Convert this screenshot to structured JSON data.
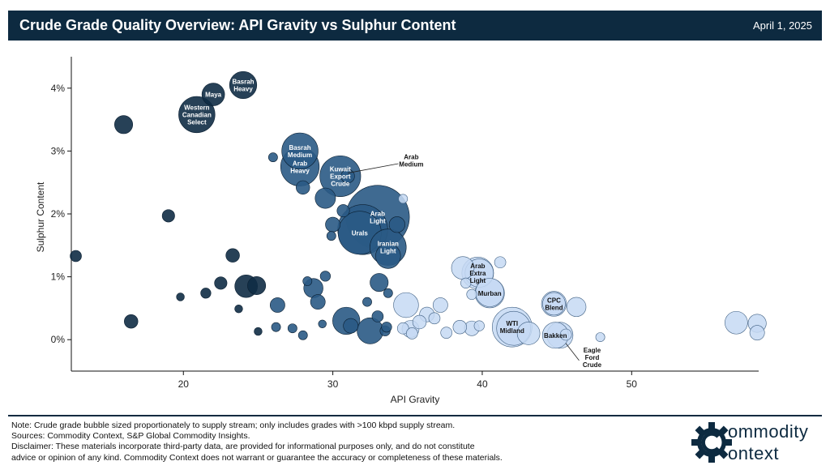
{
  "header": {
    "title": "Crude Grade Quality Overview: API Gravity vs Sulphur Content",
    "date": "April 1, 2025"
  },
  "footer": {
    "note": "Note: Crude grade bubble sized proportionately to supply stream; only includes grades with >100 kbpd supply stream.",
    "sources": "Sources: Commodity Context, S&P Global Commodity Insights.",
    "disclaimer_1": "Disclaimer: These materials incorporate third-party data, are provided for informational purposes only, and do not constitute",
    "disclaimer_2": "advice or opinion of any kind. Commodity Context does not warrant or guarantee the accuracy or completeness of these materials."
  },
  "logo": {
    "line1": "ommodity",
    "line2": "ontext"
  },
  "colors": {
    "heavy_sour": "#0f2c45",
    "medium_sour": "#2a5a85",
    "light_sweet": "#c5d9f3",
    "header": "#0d2a40"
  },
  "chart_data": {
    "type": "scatter",
    "title": "Crude Grade Quality Overview: API Gravity vs Sulphur Content",
    "xlabel": "API Gravity",
    "ylabel": "Sulphur Content",
    "xlim": [
      12.5,
      58.5
    ],
    "ylim": [
      -0.5,
      4.5
    ],
    "xticks": [
      20,
      30,
      40,
      50
    ],
    "yticks": [
      0,
      1,
      2,
      3,
      4
    ],
    "ytick_labels": [
      "0%",
      "1%",
      "2%",
      "3%",
      "4%"
    ],
    "grid": false,
    "points": [
      {
        "x": 12.8,
        "y": 1.33,
        "s": 1.0,
        "g": "h"
      },
      {
        "x": 16.0,
        "y": 3.42,
        "s": 1.6,
        "g": "h"
      },
      {
        "x": 16.5,
        "y": 0.29,
        "s": 1.2,
        "g": "h"
      },
      {
        "x": 19.0,
        "y": 1.97,
        "s": 1.1,
        "g": "h"
      },
      {
        "x": 19.8,
        "y": 0.68,
        "s": 0.7,
        "g": "h"
      },
      {
        "x": 21.5,
        "y": 0.74,
        "s": 0.9,
        "g": "h"
      },
      {
        "x": 22.5,
        "y": 0.9,
        "s": 1.1,
        "g": "h"
      },
      {
        "x": 23.3,
        "y": 1.34,
        "s": 1.2,
        "g": "h"
      },
      {
        "x": 23.7,
        "y": 0.49,
        "s": 0.7,
        "g": "h"
      },
      {
        "x": 24.2,
        "y": 0.85,
        "s": 2.0,
        "g": "h"
      },
      {
        "x": 24.9,
        "y": 0.86,
        "s": 1.6,
        "g": "h"
      },
      {
        "x": 25.0,
        "y": 0.13,
        "s": 0.7,
        "g": "h"
      },
      {
        "x": 26.3,
        "y": 0.55,
        "s": 1.3,
        "g": "m"
      },
      {
        "x": 26.2,
        "y": 0.2,
        "s": 0.8,
        "g": "m"
      },
      {
        "x": 26.0,
        "y": 2.9,
        "s": 0.8,
        "g": "m"
      },
      {
        "x": 27.3,
        "y": 0.18,
        "s": 0.8,
        "g": "m"
      },
      {
        "x": 28.0,
        "y": 2.42,
        "s": 1.2,
        "g": "m"
      },
      {
        "x": 28.0,
        "y": 0.07,
        "s": 0.8,
        "g": "m"
      },
      {
        "x": 28.3,
        "y": 0.93,
        "s": 0.8,
        "g": "m"
      },
      {
        "x": 28.7,
        "y": 0.82,
        "s": 1.7,
        "g": "m"
      },
      {
        "x": 29.0,
        "y": 0.6,
        "s": 1.3,
        "g": "m"
      },
      {
        "x": 29.3,
        "y": 0.25,
        "s": 0.7,
        "g": "m"
      },
      {
        "x": 29.5,
        "y": 1.01,
        "s": 0.9,
        "g": "m"
      },
      {
        "x": 29.5,
        "y": 2.25,
        "s": 1.8,
        "g": "m"
      },
      {
        "x": 30.0,
        "y": 1.83,
        "s": 1.3,
        "g": "m"
      },
      {
        "x": 29.9,
        "y": 1.65,
        "s": 0.8,
        "g": "m"
      },
      {
        "x": 30.7,
        "y": 2.05,
        "s": 1.1,
        "g": "m"
      },
      {
        "x": 31.0,
        "y": 2.6,
        "s": 1.2,
        "g": "m"
      },
      {
        "x": 30.9,
        "y": 0.3,
        "s": 2.4,
        "g": "m"
      },
      {
        "x": 31.2,
        "y": 0.22,
        "s": 1.3,
        "g": "m"
      },
      {
        "x": 32.0,
        "y": 1.75,
        "s": 4.4,
        "g": "m"
      },
      {
        "x": 32.3,
        "y": 0.6,
        "s": 0.8,
        "g": "m"
      },
      {
        "x": 32.5,
        "y": 0.14,
        "s": 2.3,
        "g": "m"
      },
      {
        "x": 33.0,
        "y": 0.37,
        "s": 1.0,
        "g": "m"
      },
      {
        "x": 33.1,
        "y": 0.91,
        "s": 1.6,
        "g": "m"
      },
      {
        "x": 33.5,
        "y": 0.14,
        "s": 0.9,
        "g": "m"
      },
      {
        "x": 33.6,
        "y": 0.2,
        "s": 0.9,
        "g": "m"
      },
      {
        "x": 33.7,
        "y": 0.74,
        "s": 0.8,
        "g": "m"
      },
      {
        "x": 33.7,
        "y": 1.33,
        "s": 2.2,
        "g": "m"
      },
      {
        "x": 34.3,
        "y": 1.83,
        "s": 1.4,
        "g": "m"
      },
      {
        "x": 34.7,
        "y": 2.24,
        "s": 0.8,
        "g": "l"
      },
      {
        "x": 34.9,
        "y": 0.55,
        "s": 2.2,
        "g": "l"
      },
      {
        "x": 34.7,
        "y": 0.18,
        "s": 1.0,
        "g": "l"
      },
      {
        "x": 35.2,
        "y": 0.17,
        "s": 1.5,
        "g": "l"
      },
      {
        "x": 35.3,
        "y": 0.1,
        "s": 1.0,
        "g": "l"
      },
      {
        "x": 35.8,
        "y": 0.28,
        "s": 1.2,
        "g": "l"
      },
      {
        "x": 36.3,
        "y": 0.4,
        "s": 1.3,
        "g": "l"
      },
      {
        "x": 36.8,
        "y": 0.34,
        "s": 1.0,
        "g": "l"
      },
      {
        "x": 37.2,
        "y": 0.55,
        "s": 1.3,
        "g": "l"
      },
      {
        "x": 37.6,
        "y": 0.11,
        "s": 1.0,
        "g": "l"
      },
      {
        "x": 38.5,
        "y": 0.2,
        "s": 1.2,
        "g": "l"
      },
      {
        "x": 38.7,
        "y": 1.14,
        "s": 2.0,
        "g": "l"
      },
      {
        "x": 38.9,
        "y": 0.9,
        "s": 0.9,
        "g": "l"
      },
      {
        "x": 39.3,
        "y": 0.72,
        "s": 0.9,
        "g": "l"
      },
      {
        "x": 39.3,
        "y": 0.18,
        "s": 1.3,
        "g": "l"
      },
      {
        "x": 39.8,
        "y": 0.22,
        "s": 0.9,
        "g": "l"
      },
      {
        "x": 39.8,
        "y": 1.06,
        "s": 2.5,
        "g": "l"
      },
      {
        "x": 40.5,
        "y": 0.75,
        "s": 2.5,
        "g": "l"
      },
      {
        "x": 41.2,
        "y": 1.23,
        "s": 1.0,
        "g": "l"
      },
      {
        "x": 42.1,
        "y": 0.18,
        "s": 3.0,
        "g": "l"
      },
      {
        "x": 43.1,
        "y": 0.1,
        "s": 2.0,
        "g": "l"
      },
      {
        "x": 44.8,
        "y": 0.57,
        "s": 2.0,
        "g": "l"
      },
      {
        "x": 45.2,
        "y": 0.07,
        "s": 2.3,
        "g": "l"
      },
      {
        "x": 45.6,
        "y": 0.08,
        "s": 1.0,
        "g": "l"
      },
      {
        "x": 46.3,
        "y": 0.52,
        "s": 1.7,
        "g": "l"
      },
      {
        "x": 47.9,
        "y": 0.04,
        "s": 0.8,
        "g": "l"
      },
      {
        "x": 57.0,
        "y": 0.27,
        "s": 2.0,
        "g": "l"
      },
      {
        "x": 58.4,
        "y": 0.11,
        "s": 1.3,
        "g": "l"
      },
      {
        "x": 58.4,
        "y": 0.26,
        "s": 1.6,
        "g": "l"
      },
      {
        "x": 24.0,
        "y": 4.05,
        "s": 2.4,
        "g": "h",
        "label": "Basrah\nHeavy"
      },
      {
        "x": 22.0,
        "y": 3.9,
        "s": 2.0,
        "g": "h",
        "label": "Maya"
      },
      {
        "x": 20.9,
        "y": 3.58,
        "s": 3.2,
        "g": "h",
        "label": "Western\nCanadian\nSelect"
      },
      {
        "x": 27.8,
        "y": 3.0,
        "s": 3.2,
        "g": "m",
        "label": "Basrah\nMedium"
      },
      {
        "x": 27.8,
        "y": 2.75,
        "s": 3.4,
        "g": "m",
        "label": "Arab\nHeavy"
      },
      {
        "x": 30.5,
        "y": 2.6,
        "s": 3.6,
        "g": "m",
        "label": "Kuwait\nExport\nCrude"
      },
      {
        "x": 33.0,
        "y": 1.95,
        "s": 5.6,
        "g": "m",
        "label": "Arab\nLight"
      },
      {
        "x": 31.8,
        "y": 1.7,
        "s": 3.8,
        "g": "m",
        "label": "Urals"
      },
      {
        "x": 33.7,
        "y": 1.47,
        "s": 3.2,
        "g": "m",
        "label": "Iranian\nLight"
      },
      {
        "x": 39.7,
        "y": 1.06,
        "s": 2.8,
        "g": "l",
        "label": "Arab\nExtra\nLight"
      },
      {
        "x": 40.5,
        "y": 0.74,
        "s": 2.6,
        "g": "l",
        "label": "Murban"
      },
      {
        "x": 42.0,
        "y": 0.2,
        "s": 3.5,
        "g": "l",
        "label": "WTI\nMidland"
      },
      {
        "x": 44.8,
        "y": 0.57,
        "s": 2.2,
        "g": "l",
        "label": "CPC\nBlend"
      },
      {
        "x": 44.9,
        "y": 0.07,
        "s": 2.3,
        "g": "l",
        "label": "Bakken"
      }
    ],
    "callouts": [
      {
        "label": "Arab\nMedium",
        "x": 31.0,
        "y": 2.65,
        "tx": 34.6,
        "ty": 2.85
      },
      {
        "label": "Eagle\nFord\nCrude",
        "x": 45.6,
        "y": -0.06,
        "tx": 46.7,
        "ty": -0.28
      }
    ]
  }
}
